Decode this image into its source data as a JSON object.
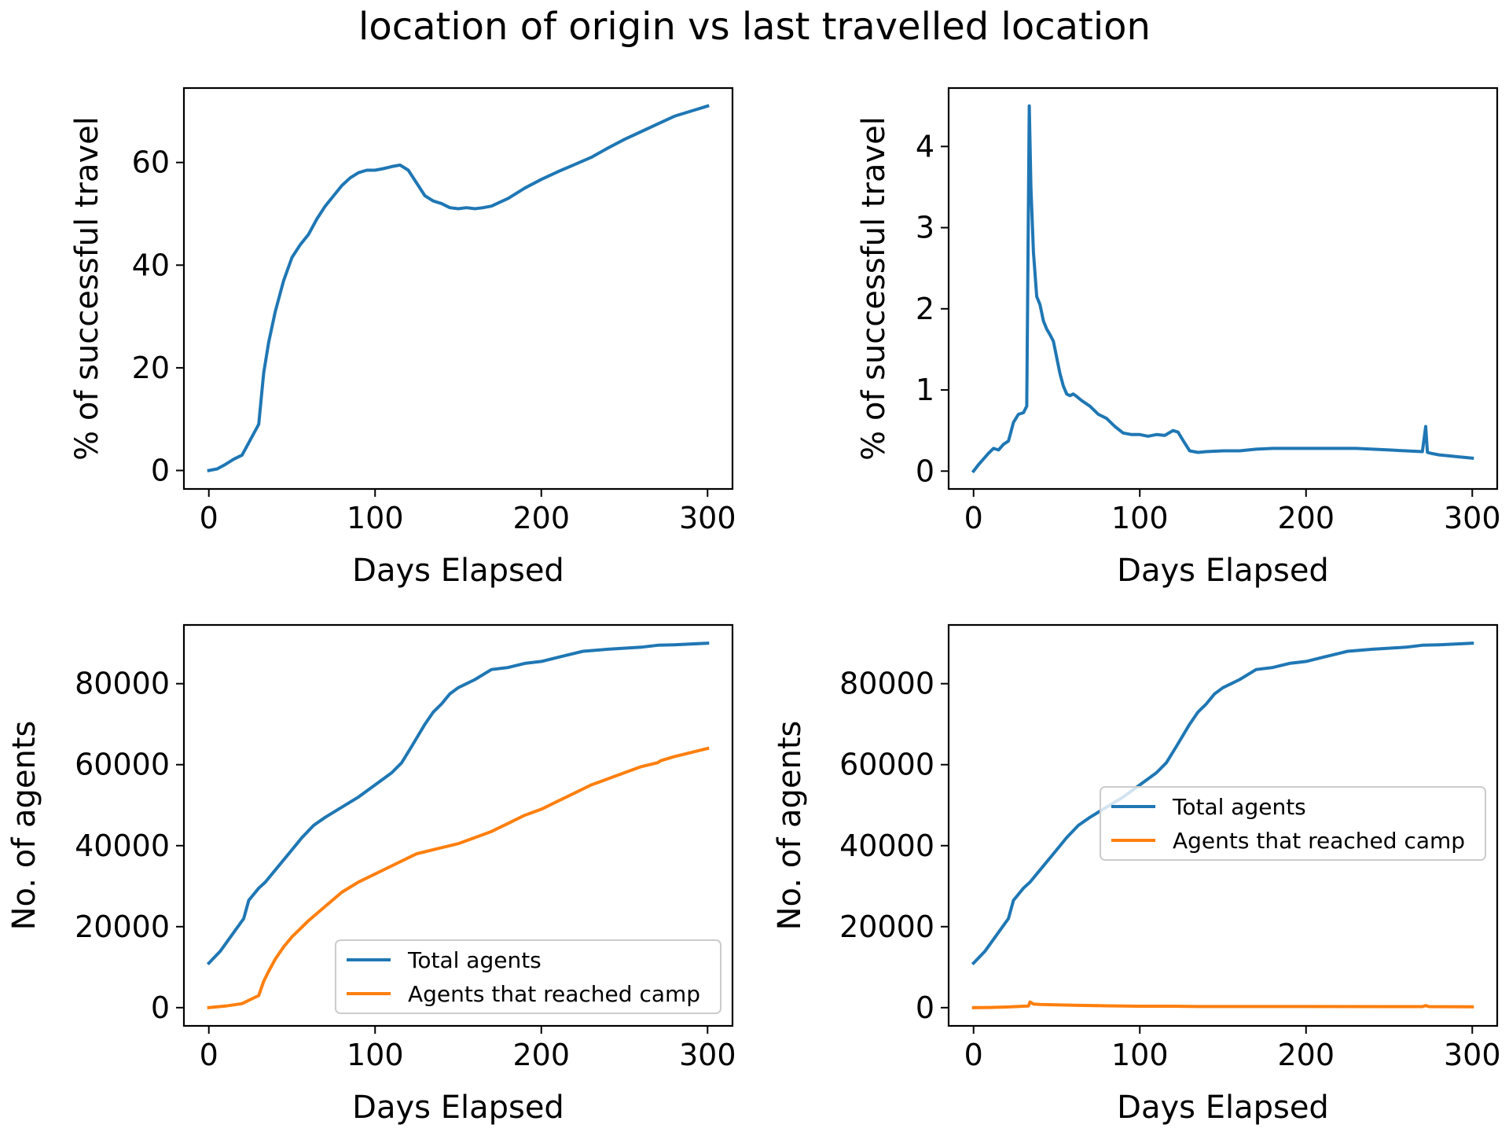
{
  "figure": {
    "title": "location of origin vs last travelled location"
  },
  "colors": {
    "series_blue": "#1f77b4",
    "series_orange": "#ff7f0e"
  },
  "chart_data": [
    {
      "type": "line",
      "xlabel": "Days Elapsed",
      "ylabel": "% of successful travel",
      "xlim": [
        -15,
        315
      ],
      "ylim": [
        -3.6,
        74.5
      ],
      "xticks": [
        0,
        100,
        200,
        300
      ],
      "yticks": [
        0,
        20,
        40,
        60
      ],
      "grid": false,
      "series": [
        {
          "color": "#1f77b4",
          "x": [
            0,
            5,
            10,
            15,
            20,
            25,
            30,
            33,
            36,
            40,
            45,
            50,
            55,
            60,
            65,
            70,
            75,
            80,
            85,
            90,
            95,
            100,
            105,
            110,
            115,
            120,
            125,
            130,
            135,
            140,
            145,
            150,
            155,
            160,
            165,
            170,
            180,
            190,
            200,
            210,
            220,
            230,
            240,
            250,
            260,
            270,
            280,
            290,
            300
          ],
          "y": [
            0,
            0.3,
            1.2,
            2.2,
            3.0,
            6.0,
            9.0,
            19.0,
            25.0,
            31.0,
            37.0,
            41.5,
            44.0,
            46.0,
            49.0,
            51.5,
            53.5,
            55.5,
            57.0,
            58.0,
            58.5,
            58.5,
            58.8,
            59.2,
            59.5,
            58.5,
            56.0,
            53.5,
            52.5,
            52.0,
            51.2,
            51.0,
            51.2,
            51.0,
            51.2,
            51.5,
            53.0,
            55.0,
            56.7,
            58.2,
            59.6,
            61.0,
            62.8,
            64.5,
            66.0,
            67.5,
            69.0,
            70.0,
            71.0
          ]
        }
      ]
    },
    {
      "type": "line",
      "xlabel": "Days Elapsed",
      "ylabel": "% of successful travel",
      "xlim": [
        -15,
        315
      ],
      "ylim": [
        -0.22,
        4.72
      ],
      "xticks": [
        0,
        100,
        200,
        300
      ],
      "yticks": [
        0,
        1,
        2,
        3,
        4
      ],
      "grid": false,
      "series": [
        {
          "color": "#1f77b4",
          "x": [
            0,
            3,
            6,
            9,
            12,
            15,
            18,
            21,
            24,
            27,
            30,
            32,
            33.5,
            34.5,
            36,
            38,
            40,
            42,
            44,
            46,
            48,
            50,
            52,
            54,
            56,
            58,
            60,
            62,
            65,
            70,
            75,
            80,
            85,
            90,
            95,
            100,
            105,
            110,
            115,
            120,
            123,
            126,
            130,
            135,
            140,
            150,
            160,
            170,
            180,
            190,
            200,
            210,
            220,
            230,
            240,
            250,
            260,
            270,
            272,
            273,
            275,
            280,
            290,
            300
          ],
          "y": [
            0,
            0.08,
            0.15,
            0.22,
            0.28,
            0.26,
            0.33,
            0.37,
            0.6,
            0.7,
            0.72,
            0.8,
            4.5,
            3.5,
            2.7,
            2.15,
            2.05,
            1.85,
            1.75,
            1.68,
            1.6,
            1.4,
            1.2,
            1.05,
            0.95,
            0.93,
            0.95,
            0.92,
            0.87,
            0.8,
            0.7,
            0.65,
            0.55,
            0.47,
            0.45,
            0.45,
            0.43,
            0.45,
            0.44,
            0.5,
            0.48,
            0.38,
            0.25,
            0.23,
            0.24,
            0.25,
            0.25,
            0.27,
            0.28,
            0.28,
            0.28,
            0.28,
            0.28,
            0.28,
            0.27,
            0.26,
            0.25,
            0.24,
            0.55,
            0.23,
            0.22,
            0.2,
            0.18,
            0.16
          ]
        }
      ]
    },
    {
      "type": "line",
      "xlabel": "Days Elapsed",
      "ylabel": "No. of agents",
      "xlim": [
        -15,
        315
      ],
      "ylim": [
        -4500,
        94500
      ],
      "xticks": [
        0,
        100,
        200,
        300
      ],
      "yticks": [
        0,
        20000,
        40000,
        60000,
        80000
      ],
      "grid": false,
      "legend": {
        "position": "lower-right",
        "entries": [
          "Total agents",
          "Agents that reached camp"
        ]
      },
      "series": [
        {
          "name": "Total agents",
          "color": "#1f77b4",
          "x": [
            0,
            7,
            14,
            21,
            24,
            27,
            30,
            34,
            40,
            48,
            56,
            63,
            70,
            80,
            90,
            100,
            110,
            116,
            122,
            130,
            135,
            140,
            145,
            150,
            155,
            160,
            170,
            180,
            190,
            200,
            210,
            220,
            225,
            240,
            260,
            270,
            280,
            300
          ],
          "y": [
            11000,
            14000,
            18000,
            22000,
            26500,
            28000,
            29500,
            31000,
            34000,
            38000,
            42000,
            45000,
            47000,
            49500,
            52000,
            55000,
            58000,
            60500,
            64500,
            70000,
            73000,
            75000,
            77500,
            79000,
            80000,
            81000,
            83500,
            84000,
            85000,
            85500,
            86500,
            87500,
            88000,
            88500,
            89000,
            89500,
            89600,
            90000
          ]
        },
        {
          "name": "Agents that reached camp",
          "color": "#ff7f0e",
          "x": [
            0,
            10,
            20,
            25,
            30,
            33,
            36,
            40,
            45,
            50,
            55,
            60,
            70,
            80,
            90,
            100,
            110,
            120,
            125,
            130,
            140,
            150,
            160,
            170,
            180,
            190,
            200,
            210,
            220,
            230,
            240,
            250,
            260,
            270,
            272,
            280,
            290,
            300
          ],
          "y": [
            0,
            400,
            1000,
            2000,
            3000,
            6500,
            9000,
            12000,
            15000,
            17500,
            19500,
            21500,
            25000,
            28500,
            31000,
            33000,
            35000,
            37000,
            38000,
            38500,
            39500,
            40500,
            42000,
            43500,
            45500,
            47500,
            49000,
            51000,
            53000,
            55000,
            56500,
            58000,
            59500,
            60500,
            61000,
            62000,
            63000,
            64000
          ]
        }
      ]
    },
    {
      "type": "line",
      "xlabel": "Days Elapsed",
      "ylabel": "No. of agents",
      "xlim": [
        -15,
        315
      ],
      "ylim": [
        -4500,
        94500
      ],
      "xticks": [
        0,
        100,
        200,
        300
      ],
      "yticks": [
        0,
        20000,
        40000,
        60000,
        80000
      ],
      "grid": false,
      "legend": {
        "position": "center-right",
        "entries": [
          "Total agents",
          "Agents that reached camp"
        ]
      },
      "series": [
        {
          "name": "Total agents",
          "color": "#1f77b4",
          "x": [
            0,
            7,
            14,
            21,
            24,
            27,
            30,
            34,
            40,
            48,
            56,
            63,
            70,
            80,
            90,
            100,
            110,
            116,
            122,
            130,
            135,
            140,
            145,
            150,
            155,
            160,
            170,
            180,
            190,
            200,
            210,
            220,
            225,
            240,
            260,
            270,
            280,
            300
          ],
          "y": [
            11000,
            14000,
            18000,
            22000,
            26500,
            28000,
            29500,
            31000,
            34000,
            38000,
            42000,
            45000,
            47000,
            49500,
            52000,
            55000,
            58000,
            60500,
            64500,
            70000,
            73000,
            75000,
            77500,
            79000,
            80000,
            81000,
            83500,
            84000,
            85000,
            85500,
            86500,
            87500,
            88000,
            88500,
            89000,
            89500,
            89600,
            90000
          ]
        },
        {
          "name": "Agents that reached camp",
          "color": "#ff7f0e",
          "x": [
            0,
            10,
            20,
            30,
            33,
            34,
            36,
            40,
            50,
            60,
            80,
            100,
            120,
            130,
            150,
            200,
            250,
            270,
            272,
            274,
            300
          ],
          "y": [
            0,
            50,
            150,
            350,
            400,
            1400,
            900,
            800,
            700,
            600,
            450,
            350,
            350,
            300,
            280,
            280,
            260,
            250,
            500,
            260,
            200
          ]
        }
      ]
    }
  ]
}
